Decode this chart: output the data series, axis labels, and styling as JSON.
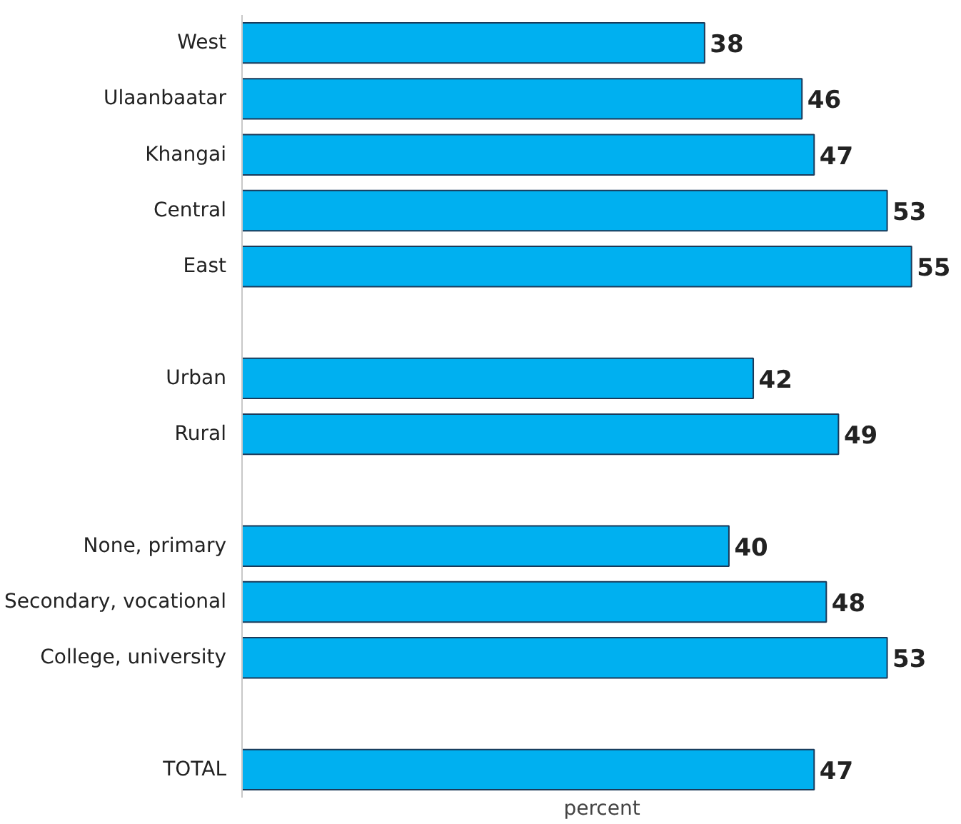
{
  "chart_data": {
    "type": "bar",
    "orientation": "horizontal",
    "xlabel": "percent",
    "categories": [
      "West",
      "Ulaanbaatar",
      "Khangai",
      "Central",
      "East",
      null,
      "Urban",
      "Rural",
      null,
      "None, primary",
      "Secondary, vocational",
      "College, university",
      null,
      "TOTAL"
    ],
    "values": [
      38,
      46,
      47,
      53,
      55,
      null,
      42,
      49,
      null,
      40,
      48,
      53,
      null,
      47
    ],
    "color": "#00b0f0",
    "data_labels": true,
    "grid": false
  }
}
